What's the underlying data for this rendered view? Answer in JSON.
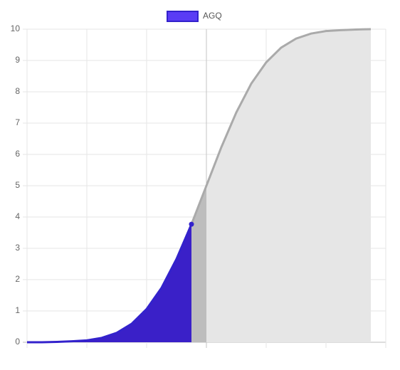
{
  "chart_data": {
    "type": "area",
    "x": [
      0,
      0.25,
      0.5,
      0.75,
      1,
      1.25,
      1.5,
      1.75,
      2,
      2.25,
      2.5,
      2.75,
      3,
      3.25,
      3.5,
      3.75,
      4,
      4.25,
      4.5,
      4.75,
      5,
      5.25,
      5.5,
      5.75
    ],
    "series": [
      {
        "name": "AGQ",
        "color": "#3322cc",
        "fill": "#3a20c8",
        "rest_color": "#aaaaaa",
        "rest_fill": "#e6e6e6",
        "highlight_index": 11,
        "values": [
          0,
          0,
          0.01,
          0.03,
          0.06,
          0.14,
          0.3,
          0.59,
          1.06,
          1.74,
          2.66,
          3.77,
          5,
          6.23,
          7.34,
          8.26,
          8.94,
          9.41,
          9.7,
          9.86,
          9.94,
          9.97,
          9.99,
          10
        ]
      }
    ],
    "xlim": [
      0,
      6
    ],
    "ylim": [
      0,
      10
    ],
    "yticks": [
      0,
      1,
      2,
      3,
      4,
      5,
      6,
      7,
      8,
      9,
      10
    ],
    "grid": true,
    "legend": "top"
  }
}
